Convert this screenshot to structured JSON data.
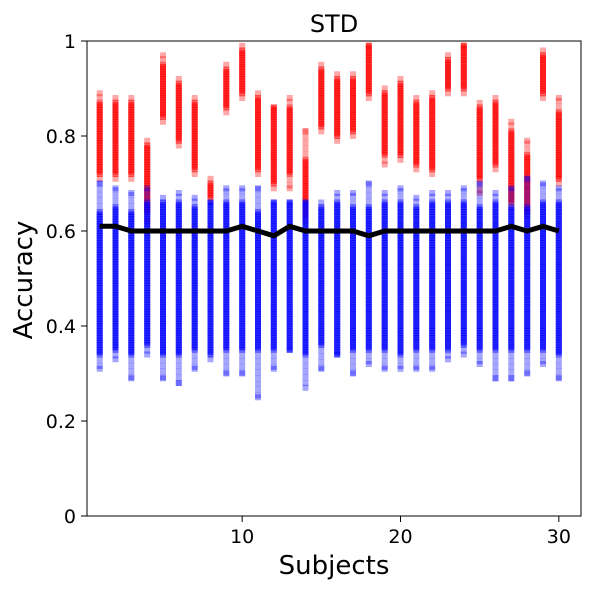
{
  "chart_data": {
    "type": "scatter",
    "title": "STD",
    "xlabel": "Subjects",
    "ylabel": "Accuracy",
    "xlim": [
      0.2,
      31.4
    ],
    "ylim": [
      0,
      1
    ],
    "xticks": [
      10,
      20,
      30
    ],
    "yticks": [
      0,
      0.2,
      0.4,
      0.6,
      0.8,
      1
    ],
    "grid": false,
    "legend": "none",
    "colors": {
      "high": "#ff0000",
      "low": "#0000ff",
      "mean_line": "#000000"
    },
    "subjects": [
      1,
      2,
      3,
      4,
      5,
      6,
      7,
      8,
      9,
      10,
      11,
      12,
      13,
      14,
      15,
      16,
      17,
      18,
      19,
      20,
      21,
      22,
      23,
      24,
      25,
      26,
      27,
      28,
      29,
      30
    ],
    "series": [
      {
        "role": "high",
        "marker": "square",
        "core_ranges": [
          [
            0.72,
            0.87
          ],
          [
            0.72,
            0.87
          ],
          [
            0.72,
            0.87
          ],
          [
            0.64,
            0.78
          ],
          [
            0.84,
            0.95
          ],
          [
            0.79,
            0.91
          ],
          [
            0.73,
            0.87
          ],
          [
            0.67,
            0.7
          ],
          [
            0.86,
            0.94
          ],
          [
            0.89,
            0.98
          ],
          [
            0.73,
            0.88
          ],
          [
            0.7,
            0.86
          ],
          [
            0.72,
            0.86
          ],
          [
            0.63,
            0.75
          ],
          [
            0.82,
            0.94
          ],
          [
            0.8,
            0.92
          ],
          [
            0.81,
            0.92
          ],
          [
            0.89,
            0.99
          ],
          [
            0.76,
            0.89
          ],
          [
            0.76,
            0.91
          ],
          [
            0.74,
            0.87
          ],
          [
            0.73,
            0.88
          ],
          [
            0.9,
            0.96
          ],
          [
            0.9,
            0.99
          ],
          [
            0.71,
            0.86
          ],
          [
            0.74,
            0.87
          ],
          [
            0.66,
            0.81
          ],
          [
            0.64,
            0.76
          ],
          [
            0.89,
            0.97
          ],
          [
            0.71,
            0.85
          ]
        ],
        "extremes": [
          [
            0.71,
            0.89
          ],
          [
            0.71,
            0.88
          ],
          [
            0.71,
            0.88
          ],
          [
            0.62,
            0.79
          ],
          [
            0.83,
            0.97
          ],
          [
            0.78,
            0.92
          ],
          [
            0.72,
            0.88
          ],
          [
            0.66,
            0.71
          ],
          [
            0.85,
            0.95
          ],
          [
            0.88,
            0.99
          ],
          [
            0.72,
            0.89
          ],
          [
            0.69,
            0.86
          ],
          [
            0.69,
            0.88
          ],
          [
            0.62,
            0.81
          ],
          [
            0.81,
            0.95
          ],
          [
            0.79,
            0.93
          ],
          [
            0.8,
            0.93
          ],
          [
            0.88,
            0.99
          ],
          [
            0.74,
            0.9
          ],
          [
            0.75,
            0.92
          ],
          [
            0.73,
            0.88
          ],
          [
            0.72,
            0.89
          ],
          [
            0.89,
            0.97
          ],
          [
            0.89,
            0.99
          ],
          [
            0.68,
            0.87
          ],
          [
            0.73,
            0.88
          ],
          [
            0.65,
            0.83
          ],
          [
            0.63,
            0.79
          ],
          [
            0.88,
            0.98
          ],
          [
            0.7,
            0.88
          ]
        ]
      },
      {
        "role": "low",
        "marker": "square",
        "core_ranges": [
          [
            0.34,
            0.64
          ],
          [
            0.35,
            0.65
          ],
          [
            0.34,
            0.64
          ],
          [
            0.36,
            0.66
          ],
          [
            0.34,
            0.66
          ],
          [
            0.34,
            0.66
          ],
          [
            0.35,
            0.65
          ],
          [
            0.34,
            0.66
          ],
          [
            0.35,
            0.66
          ],
          [
            0.35,
            0.66
          ],
          [
            0.35,
            0.64
          ],
          [
            0.35,
            0.66
          ],
          [
            0.35,
            0.66
          ],
          [
            0.34,
            0.66
          ],
          [
            0.36,
            0.65
          ],
          [
            0.34,
            0.66
          ],
          [
            0.35,
            0.65
          ],
          [
            0.35,
            0.65
          ],
          [
            0.35,
            0.66
          ],
          [
            0.34,
            0.66
          ],
          [
            0.35,
            0.65
          ],
          [
            0.35,
            0.66
          ],
          [
            0.35,
            0.66
          ],
          [
            0.36,
            0.66
          ],
          [
            0.35,
            0.65
          ],
          [
            0.35,
            0.66
          ],
          [
            0.35,
            0.65
          ],
          [
            0.35,
            0.65
          ],
          [
            0.35,
            0.66
          ],
          [
            0.34,
            0.66
          ]
        ],
        "extremes": [
          [
            0.31,
            0.7
          ],
          [
            0.33,
            0.69
          ],
          [
            0.29,
            0.68
          ],
          [
            0.34,
            0.69
          ],
          [
            0.29,
            0.67
          ],
          [
            0.28,
            0.68
          ],
          [
            0.31,
            0.67
          ],
          [
            0.33,
            0.66
          ],
          [
            0.3,
            0.69
          ],
          [
            0.3,
            0.69
          ],
          [
            0.25,
            0.69
          ],
          [
            0.31,
            0.66
          ],
          [
            0.35,
            0.66
          ],
          [
            0.27,
            0.66
          ],
          [
            0.31,
            0.66
          ],
          [
            0.34,
            0.68
          ],
          [
            0.3,
            0.68
          ],
          [
            0.32,
            0.7
          ],
          [
            0.31,
            0.68
          ],
          [
            0.31,
            0.69
          ],
          [
            0.31,
            0.67
          ],
          [
            0.31,
            0.68
          ],
          [
            0.33,
            0.68
          ],
          [
            0.34,
            0.69
          ],
          [
            0.32,
            0.7
          ],
          [
            0.29,
            0.68
          ],
          [
            0.29,
            0.69
          ],
          [
            0.3,
            0.71
          ],
          [
            0.32,
            0.7
          ],
          [
            0.29,
            0.69
          ]
        ]
      },
      {
        "role": "mean_line",
        "values": [
          0.61,
          0.61,
          0.6,
          0.6,
          0.6,
          0.6,
          0.6,
          0.6,
          0.6,
          0.61,
          0.6,
          0.59,
          0.61,
          0.6,
          0.6,
          0.6,
          0.6,
          0.59,
          0.6,
          0.6,
          0.6,
          0.6,
          0.6,
          0.6,
          0.6,
          0.6,
          0.61,
          0.6,
          0.61,
          0.6
        ]
      }
    ]
  }
}
